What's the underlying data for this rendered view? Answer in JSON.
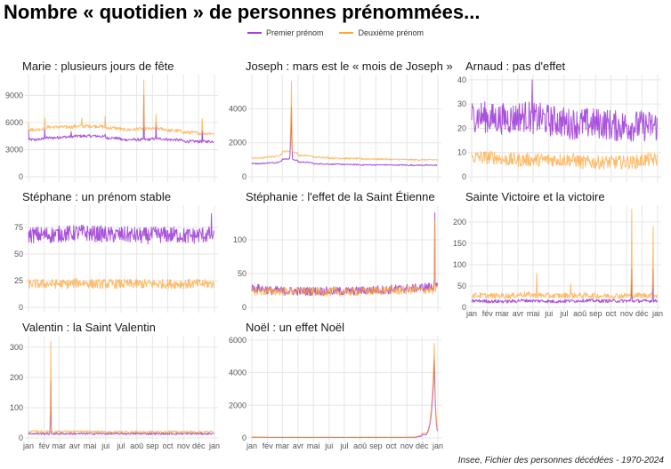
{
  "title": "Nombre « quotidien » de personnes prénommées...",
  "legend": {
    "premier": {
      "label": "Premier prénom",
      "color": "#a040d8"
    },
    "deuxieme": {
      "label": "Deuxième prénom",
      "color": "#ffa53a"
    }
  },
  "caption": "Insee, Fichier des personnes décédées - 1970-2024",
  "chart_data": {
    "type": "line",
    "x_tick_labels": [
      "jan",
      "fév",
      "mar",
      "avr",
      "mai",
      "jui",
      "jul",
      "aoû",
      "sep",
      "oct",
      "nov",
      "déc",
      "jan"
    ],
    "grid": true,
    "legend_position": "top",
    "panels": [
      {
        "title": "Marie : plusieurs jours de fête",
        "ylim": [
          0,
          10900
        ],
        "yticks": [
          0,
          3000,
          6000,
          9000
        ],
        "series": [
          {
            "name": "Premier prénom",
            "monthly": [
              4100,
              4300,
              4400,
              4500,
              4500,
              4300,
              4100,
              4100,
              4200,
              4100,
              3900,
              3900
            ],
            "noise": 120,
            "spikes": [
              {
                "date": "01-01",
                "value": 5200
              },
              {
                "date": "02-02",
                "value": 5300
              },
              {
                "date": "03-25",
                "value": 5000
              },
              {
                "date": "05-31",
                "value": 4700
              },
              {
                "date": "08-15",
                "value": 9000
              },
              {
                "date": "09-08",
                "value": 5900
              },
              {
                "date": "12-08",
                "value": 5100
              }
            ]
          },
          {
            "name": "Deuxième prénom",
            "monthly": [
              5200,
              5500,
              5500,
              5600,
              5600,
              5400,
              5200,
              5300,
              5300,
              5100,
              4900,
              4800
            ],
            "noise": 150,
            "spikes": [
              {
                "date": "01-01",
                "value": 6000
              },
              {
                "date": "02-02",
                "value": 6500
              },
              {
                "date": "04-15",
                "value": 6500
              },
              {
                "date": "05-31",
                "value": 6700
              },
              {
                "date": "08-15",
                "value": 10700
              },
              {
                "date": "09-08",
                "value": 6900
              },
              {
                "date": "12-08",
                "value": 6400
              }
            ]
          }
        ]
      },
      {
        "title": "Joseph : mars est le « mois de Joseph »",
        "ylim": [
          0,
          5800
        ],
        "yticks": [
          0,
          2000,
          4000
        ],
        "series": [
          {
            "name": "Premier prénom",
            "monthly": [
              780,
              820,
              1050,
              860,
              760,
              740,
              720,
              700,
              700,
              690,
              680,
              680
            ],
            "noise": 25,
            "spikes": [
              {
                "date": "03-19",
                "value": 4100,
                "width": 3
              }
            ]
          },
          {
            "name": "Deuxième prénom",
            "monthly": [
              1100,
              1180,
              1500,
              1250,
              1150,
              1100,
              1080,
              1050,
              1040,
              1020,
              1000,
              1000
            ],
            "noise": 35,
            "spikes": [
              {
                "date": "03-19",
                "value": 5600,
                "width": 3
              }
            ]
          }
        ]
      },
      {
        "title": "Arnaud : pas d'effet",
        "ylim": [
          0,
          40.7
        ],
        "yticks": [
          0,
          10,
          20,
          30,
          40
        ],
        "series": [
          {
            "name": "Premier prénom",
            "monthly": [
              25,
              24,
              24,
              25,
              24,
              23,
              22,
              22,
              22,
              21,
              21,
              21
            ],
            "noise": 5,
            "spikes": [
              {
                "date": "04-29",
                "value": 40
              }
            ]
          },
          {
            "name": "Deuxième prénom",
            "monthly": [
              8,
              8,
              7,
              7,
              7,
              7,
              7,
              6,
              6,
              6,
              6,
              7
            ],
            "noise": 2.2,
            "spikes": []
          }
        ]
      },
      {
        "title": "Stéphane : un prénom stable",
        "ylim": [
          0,
          92.5
        ],
        "yticks": [
          0,
          25,
          50,
          75
        ],
        "series": [
          {
            "name": "Premier prénom",
            "monthly": [
              68,
              68,
              69,
              70,
              69,
              68,
              68,
              67,
              68,
              68,
              67,
              68
            ],
            "noise": 6,
            "spikes": [
              {
                "date": "02-24",
                "value": 40
              },
              {
                "date": "12-26",
                "value": 88
              }
            ]
          },
          {
            "name": "Deuxième prénom",
            "monthly": [
              22,
              22,
              22,
              23,
              22,
              22,
              22,
              22,
              22,
              22,
              22,
              22
            ],
            "noise": 3.5,
            "spikes": []
          }
        ]
      },
      {
        "title": "Stéphanie : l'effet de la Saint Étienne",
        "ylim": [
          0,
          146
        ],
        "yticks": [
          0,
          50,
          100
        ],
        "series": [
          {
            "name": "Premier prénom",
            "monthly": [
              28,
              25,
              24,
              24,
              24,
              24,
              24,
              25,
              26,
              27,
              28,
              30
            ],
            "noise": 5,
            "spikes": [
              {
                "date": "12-26",
                "value": 140
              }
            ]
          },
          {
            "name": "Deuxième prénom",
            "monthly": [
              24,
              24,
              24,
              24,
              23,
              23,
              23,
              24,
              25,
              25,
              26,
              26
            ],
            "noise": 5,
            "spikes": [
              {
                "date": "12-26",
                "value": 130
              }
            ]
          }
        ]
      },
      {
        "title": "Sainte Victoire et la victoire",
        "ylim": [
          0,
          231
        ],
        "yticks": [
          0,
          50,
          100,
          150,
          200
        ],
        "series": [
          {
            "name": "Premier prénom",
            "monthly": [
              15,
              14,
              14,
              16,
              15,
              14,
              15,
              16,
              15,
              15,
              15,
              15
            ],
            "noise": 3,
            "spikes": [
              {
                "date": "11-11",
                "value": 90
              },
              {
                "date": "12-23",
                "value": 90
              }
            ]
          },
          {
            "name": "Deuxième prénom",
            "monthly": [
              28,
              27,
              27,
              30,
              28,
              27,
              28,
              28,
              27,
              27,
              28,
              28
            ],
            "noise": 5,
            "spikes": [
              {
                "date": "05-08",
                "value": 80
              },
              {
                "date": "07-14",
                "value": 55
              },
              {
                "date": "11-11",
                "value": 230
              },
              {
                "date": "12-23",
                "value": 190
              }
            ]
          }
        ]
      },
      {
        "title": "Valentin : la Saint Valentin",
        "ylim": [
          0,
          326
        ],
        "yticks": [
          0,
          100,
          200,
          300
        ],
        "series": [
          {
            "name": "Premier prénom",
            "monthly": [
              14,
              14,
              14,
              14,
              14,
              14,
              14,
              14,
              14,
              14,
              14,
              14
            ],
            "noise": 2.5,
            "spikes": [
              {
                "date": "02-14",
                "value": 190
              }
            ]
          },
          {
            "name": "Deuxième prénom",
            "monthly": [
              21,
              21,
              21,
              21,
              20,
              20,
              20,
              20,
              20,
              20,
              20,
              20
            ],
            "noise": 3,
            "spikes": [
              {
                "date": "02-14",
                "value": 320
              }
            ]
          }
        ]
      },
      {
        "title": "Noël : un effet Noël",
        "ylim": [
          0,
          6050
        ],
        "yticks": [
          0,
          2000,
          4000,
          6000
        ],
        "series": [
          {
            "name": "Premier prénom",
            "monthly": [
              40,
              30,
              30,
              30,
              30,
              30,
              30,
              30,
              30,
              30,
              35,
              200
            ],
            "noise": 5,
            "spikes": [
              {
                "date": "12-25",
                "value": 4800,
                "width": 6
              }
            ]
          },
          {
            "name": "Deuxième prénom",
            "monthly": [
              60,
              45,
              45,
              45,
              45,
              45,
              45,
              45,
              45,
              45,
              50,
              300
            ],
            "noise": 8,
            "spikes": [
              {
                "date": "12-25",
                "value": 5800,
                "width": 6
              }
            ]
          }
        ]
      }
    ]
  }
}
